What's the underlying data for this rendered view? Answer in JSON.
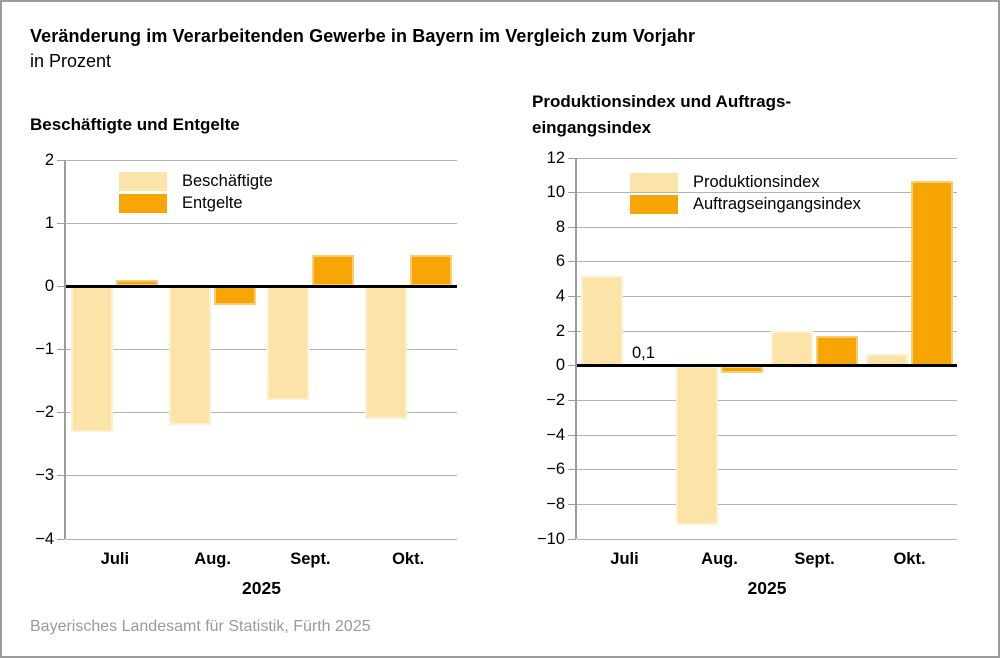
{
  "page": {
    "title_line1": "Veränderung im Verarbeitenden Gewerbe in Bayern im Vergleich zum Vorjahr",
    "title_line2": "in Prozent",
    "footer": "Bayerisches Landesamt für Statistik, Fürth 2025"
  },
  "colors": {
    "bar_light": "#FCE4A8",
    "bar_orange": "#F6A503",
    "gridline": "#B3B3B3",
    "axis": "#9C9C9C",
    "zero_line": "#000000",
    "frame_border": "#9C9C9C",
    "footer_text": "#9A9A9A"
  },
  "chart_data": [
    {
      "type": "bar",
      "title_lines": [
        "Beschäftigte und Entgelte"
      ],
      "categories": [
        "Juli",
        "Aug.",
        "Sept.",
        "Okt."
      ],
      "x_axis_label": "2025",
      "ylim": [
        -4,
        2
      ],
      "ytick_step": 1,
      "grid": true,
      "legend_position": "top-left-inside",
      "series": [
        {
          "name": "Beschäftigte",
          "color": "#FCE4A8",
          "values": [
            -2.3,
            -2.2,
            -1.8,
            -2.1
          ]
        },
        {
          "name": "Entgelte",
          "color": "#F6A503",
          "values": [
            0.1,
            -0.3,
            0.5,
            0.5
          ]
        }
      ]
    },
    {
      "type": "bar",
      "title_lines": [
        "Produktionsindex und Auftrags-",
        "eingangsindex"
      ],
      "categories": [
        "Juli",
        "Aug.",
        "Sept.",
        "Okt."
      ],
      "x_axis_label": "2025",
      "ylim": [
        -10,
        12
      ],
      "ytick_step": 2,
      "grid": true,
      "legend_position": "top-left-inside",
      "annotation": {
        "text": "0,1",
        "series_index": 1,
        "category_index": 0
      },
      "series": [
        {
          "name": "Produktionsindex",
          "color": "#FCE4A8",
          "values": [
            5.2,
            -9.2,
            2.0,
            0.7
          ]
        },
        {
          "name": "Auftragseingangsindex",
          "color": "#F6A503",
          "values": [
            0.1,
            -0.4,
            1.7,
            10.7
          ]
        }
      ]
    }
  ]
}
